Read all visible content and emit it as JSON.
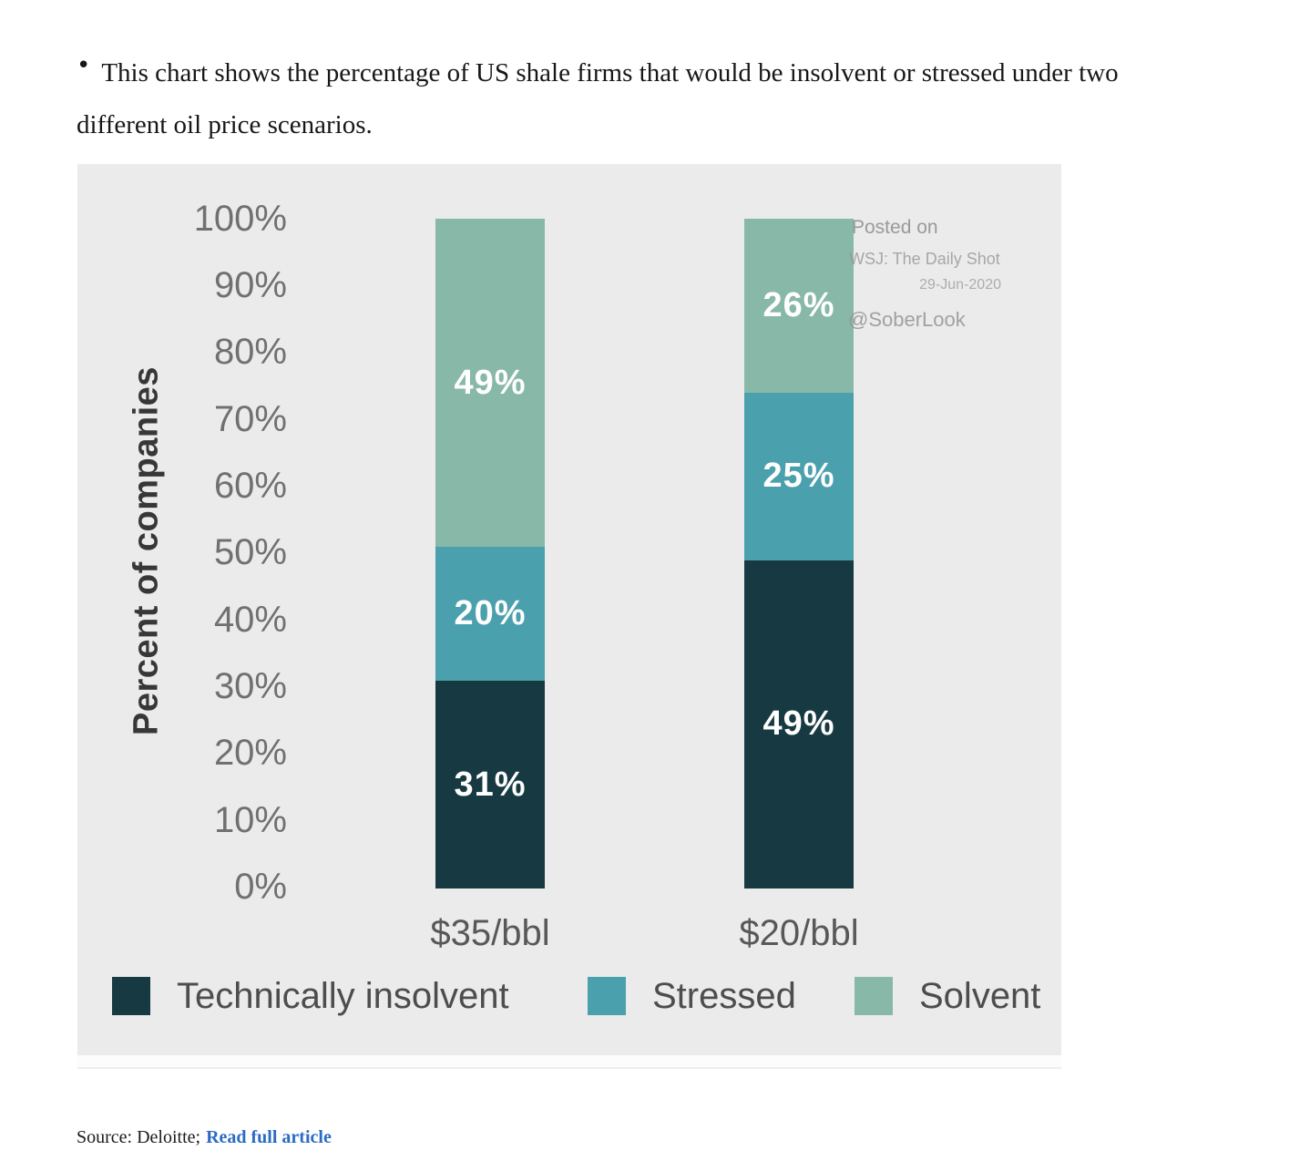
{
  "intro": {
    "bullet": "•",
    "line1": "This chart shows the percentage of US shale firms that would be insolvent or stressed under two",
    "line2": "different oil price scenarios."
  },
  "watermark": {
    "posted_on": "Posted on",
    "outlet": "WSJ: The Daily Shot",
    "date": "29-Jun-2020",
    "handle": "@SoberLook"
  },
  "chart_data": {
    "type": "bar",
    "stacked": true,
    "title": "",
    "xlabel": "",
    "ylabel": "Percent of companies",
    "categories": [
      "$35/bbl",
      "$20/bbl"
    ],
    "ylim": [
      0,
      100
    ],
    "grid": false,
    "legend_position": "bottom",
    "yticks": [
      "100%",
      "90%",
      "80%",
      "70%",
      "60%",
      "50%",
      "40%",
      "30%",
      "20%",
      "10%",
      "0%"
    ],
    "series": [
      {
        "name": "Technically insolvent",
        "color": "#173a42",
        "values": [
          31,
          49
        ],
        "labels": [
          "31%",
          "49%"
        ]
      },
      {
        "name": "Stressed",
        "color": "#4ba0ad",
        "values": [
          20,
          25
        ],
        "labels": [
          "20%",
          "25%"
        ]
      },
      {
        "name": "Solvent",
        "color": "#88b8a8",
        "values": [
          49,
          26
        ],
        "labels": [
          "49%",
          "26%"
        ]
      }
    ],
    "panel_background": "#ebebeb"
  },
  "source": {
    "prefix": "Source: Deloitte;",
    "link_text": "Read full article"
  }
}
